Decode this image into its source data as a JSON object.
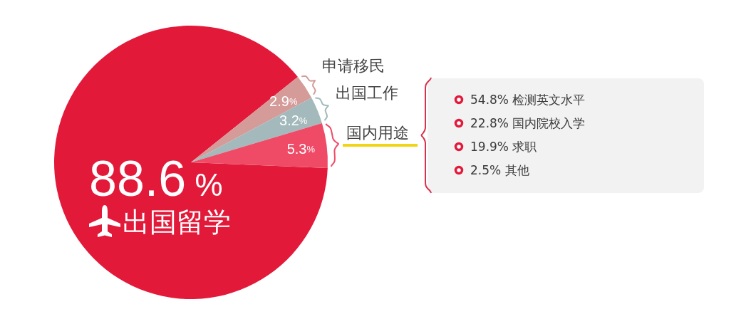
{
  "chart_data": [
    {
      "type": "pie",
      "categories": [
        "出国留学",
        "申请移民",
        "出国工作",
        "国内用途"
      ],
      "values": [
        88.6,
        2.9,
        3.2,
        5.3
      ],
      "colors": [
        "#e3193a",
        "#d49b99",
        "#a3b9bb",
        "#ef4b67"
      ],
      "value_labels": [
        "88.6 %",
        "2.9%",
        "3.2%",
        "5.3%"
      ]
    },
    {
      "type": "other",
      "annotations": [
        "54.8% 检测英文水平",
        "22.8% 国内院校入学",
        "19.9% 求职",
        "2.5% 其他"
      ]
    }
  ]
}
